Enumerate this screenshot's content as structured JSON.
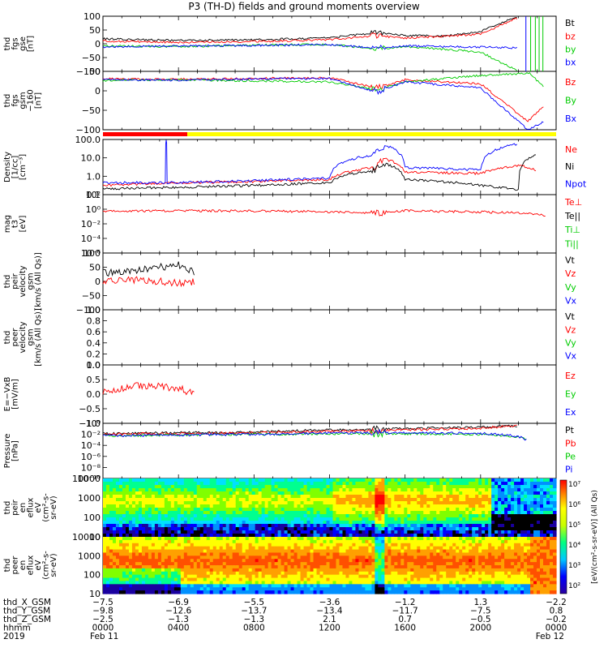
{
  "title": "P3 (TH-D) fields and ground moments overview",
  "panels": [
    {
      "id": "fgs_gse",
      "ylabel": [
        "thd",
        "fgs",
        "gse",
        "[nT]"
      ],
      "ylim": [
        -100,
        100
      ],
      "yticks": [
        "100",
        "50",
        "0",
        "−50",
        "−100"
      ],
      "legend": [
        {
          "label": "Bt",
          "color": "#000000"
        },
        {
          "label": "bz",
          "color": "#ff0000"
        },
        {
          "label": "by",
          "color": "#00cc00"
        },
        {
          "label": "bx",
          "color": "#0000ff"
        }
      ]
    },
    {
      "id": "fgs_gsm",
      "ylabel": [
        "thd",
        "fgs",
        "gsm",
        "−160",
        "[nT]"
      ],
      "ylim": [
        -120,
        20
      ],
      "yticks": [
        "50",
        "0",
        "−50",
        "−100"
      ],
      "legend": [
        {
          "label": "Bz",
          "color": "#ff0000"
        },
        {
          "label": "By",
          "color": "#00cc00"
        },
        {
          "label": "Bx",
          "color": "#0000ff"
        }
      ]
    },
    {
      "id": "density",
      "ylabel": [
        "Density",
        "[1/cc]",
        "[cm⁻³]"
      ],
      "scale": "log",
      "yticks": [
        "100.0",
        "10.0",
        "1.0",
        "0.1"
      ],
      "legend": [
        {
          "label": "Ne",
          "color": "#ff0000"
        },
        {
          "label": "Ni",
          "color": "#000000"
        },
        {
          "label": "Npot",
          "color": "#0000ff"
        }
      ]
    },
    {
      "id": "temp",
      "ylabel": [
        "mag",
        "t3",
        "[eV]"
      ],
      "scale": "log",
      "yticks": [
        "10²",
        "10⁰",
        "10⁻²",
        "10⁻⁴",
        "10⁻⁶"
      ],
      "legend": [
        {
          "label": "Te⊥",
          "color": "#ff0000"
        },
        {
          "label": "Te||",
          "color": "#000000"
        },
        {
          "label": "Ti⊥",
          "color": "#00cc00"
        },
        {
          "label": "Ti||",
          "color": "#00cc00"
        }
      ]
    },
    {
      "id": "peir_vel",
      "ylabel": [
        "thd",
        "peir",
        "velocity",
        "gsm",
        "[km/s (All Qs)]"
      ],
      "ylim": [
        -100,
        100
      ],
      "yticks": [
        "100",
        "50",
        "0",
        "−50",
        "−100"
      ],
      "legend": [
        {
          "label": "Vt",
          "color": "#000000"
        },
        {
          "label": "Vz",
          "color": "#ff0000"
        },
        {
          "label": "Vy",
          "color": "#00cc00"
        },
        {
          "label": "Vx",
          "color": "#0000ff"
        }
      ]
    },
    {
      "id": "peer_vel",
      "ylabel": [
        "thd",
        "peer",
        "velocity",
        "gsm",
        "[km/s (All Qs)]"
      ],
      "ylim": [
        0,
        1
      ],
      "yticks": [
        "1.0",
        "0.8",
        "0.6",
        "0.4",
        "0.2",
        "0.0"
      ],
      "legend": [
        {
          "label": "Vt",
          "color": "#000000"
        },
        {
          "label": "Vz",
          "color": "#ff0000"
        },
        {
          "label": "Vy",
          "color": "#00cc00"
        },
        {
          "label": "Vx",
          "color": "#0000ff"
        }
      ]
    },
    {
      "id": "efield",
      "ylabel": [
        "E=−VxB",
        "[mV/m]"
      ],
      "ylim": [
        -1,
        1
      ],
      "yticks": [
        "1.0",
        "0.5",
        "0.0",
        "−0.5",
        "−1.0"
      ],
      "legend": [
        {
          "label": "Ez",
          "color": "#ff0000"
        },
        {
          "label": "Ey",
          "color": "#00cc00"
        },
        {
          "label": "Ex",
          "color": "#0000ff"
        }
      ]
    },
    {
      "id": "pressure",
      "ylabel": [
        "Pressure",
        "[nPa]"
      ],
      "scale": "log",
      "yticks": [
        "10⁰",
        "10⁻²",
        "10⁻⁴",
        "10⁻⁶",
        "10⁻⁸",
        "10⁻¹⁰"
      ],
      "legend": [
        {
          "label": "Pt",
          "color": "#000000"
        },
        {
          "label": "Pb",
          "color": "#ff0000"
        },
        {
          "label": "Pe",
          "color": "#00cc00"
        },
        {
          "label": "Pi",
          "color": "#0000ff"
        }
      ]
    },
    {
      "id": "peir_spec",
      "ylabel": [
        "thd",
        "peir",
        "en",
        "eflux",
        "eV",
        "(cm²-s-",
        "sr-eV)"
      ],
      "scale": "log",
      "yticks": [
        "10000",
        "1000",
        "100",
        "10"
      ]
    },
    {
      "id": "peer_spec",
      "ylabel": [
        "thd",
        "peer",
        "en",
        "eflux",
        "eV",
        "(cm²-s-",
        "sr-eV)"
      ],
      "scale": "log",
      "yticks": [
        "10000",
        "1000",
        "100",
        "10"
      ]
    }
  ],
  "colorbar": {
    "label": "[eV/(cm²-s-sr-eV)] (All Qs)",
    "ticks": [
      "10⁷",
      "10⁶",
      "10⁵",
      "10⁴",
      "10³",
      "10²"
    ]
  },
  "ephemeris": {
    "row_labels": [
      "thd_X_GSM",
      "thd_Y_GSM",
      "thd_Z_GSM",
      "hhmm",
      "2019"
    ],
    "columns": [
      [
        "−7.5",
        "−9.8",
        "−2.5",
        "0000",
        "Feb 11"
      ],
      [
        "−6.9",
        "−12.6",
        "−1.3",
        "0400",
        ""
      ],
      [
        "−5.5",
        "−13.7",
        "−1.3",
        "0800",
        ""
      ],
      [
        "−3.6",
        "−13.4",
        "2.1",
        "1200",
        ""
      ],
      [
        "−1.2",
        "−11.7",
        "0.7",
        "1600",
        ""
      ],
      [
        "1.3",
        "−7.5",
        "−0.5",
        "2000",
        ""
      ],
      [
        "−2.2",
        "0.8",
        "−0.2",
        "0000",
        "Feb 12"
      ]
    ]
  },
  "chart_data": {
    "type": "line",
    "title": "P3 (TH-D) fields and ground moments overview",
    "x": {
      "label": "hhmm",
      "ticks": [
        "0000",
        "0400",
        "0800",
        "1200",
        "1600",
        "2000",
        "0000"
      ],
      "range_hours": [
        0,
        24
      ],
      "start_date": "Feb 11 2019",
      "end_date": "Feb 12 2019"
    },
    "series": [
      {
        "panel": "fgs_gse",
        "name": "Bt",
        "points": [
          [
            0,
            18
          ],
          [
            4,
            12
          ],
          [
            8,
            14
          ],
          [
            12,
            22
          ],
          [
            14.5,
            40
          ],
          [
            16,
            30
          ],
          [
            18,
            28
          ],
          [
            20,
            45
          ],
          [
            22,
            100
          ]
        ]
      },
      {
        "panel": "fgs_gse",
        "name": "bz",
        "points": [
          [
            0,
            10
          ],
          [
            4,
            5
          ],
          [
            8,
            8
          ],
          [
            12,
            15
          ],
          [
            14.5,
            30
          ],
          [
            16,
            20
          ],
          [
            20,
            35
          ],
          [
            22,
            95
          ]
        ]
      },
      {
        "panel": "fgs_gse",
        "name": "by",
        "points": [
          [
            0,
            -8
          ],
          [
            4,
            -10
          ],
          [
            8,
            -5
          ],
          [
            12,
            -2
          ],
          [
            14.5,
            -20
          ],
          [
            16,
            -10
          ],
          [
            20,
            -30
          ],
          [
            22,
            -100
          ]
        ]
      },
      {
        "panel": "fgs_gse",
        "name": "bx",
        "points": [
          [
            0,
            -12
          ],
          [
            4,
            -8
          ],
          [
            8,
            -6
          ],
          [
            12,
            -3
          ],
          [
            14.5,
            -15
          ],
          [
            16,
            -8
          ],
          [
            20,
            -12
          ],
          [
            22,
            -15
          ]
        ]
      },
      {
        "panel": "fgs_gsm",
        "name": "Bz",
        "points": [
          [
            0,
            2
          ],
          [
            4,
            1
          ],
          [
            8,
            3
          ],
          [
            12,
            5
          ],
          [
            14.5,
            -20
          ],
          [
            16,
            0
          ],
          [
            20,
            -10
          ],
          [
            22.5,
            -100
          ],
          [
            23.4,
            -60
          ]
        ]
      },
      {
        "panel": "fgs_gsm",
        "name": "By",
        "points": [
          [
            0,
            -2
          ],
          [
            4,
            0
          ],
          [
            8,
            -3
          ],
          [
            12,
            -5
          ],
          [
            14.5,
            -25
          ],
          [
            16,
            -5
          ],
          [
            20,
            10
          ],
          [
            22.6,
            15
          ],
          [
            23.4,
            -20
          ]
        ]
      },
      {
        "panel": "fgs_gsm",
        "name": "Bx",
        "points": [
          [
            0,
            0
          ],
          [
            4,
            -1
          ],
          [
            8,
            2
          ],
          [
            12,
            3
          ],
          [
            14.5,
            -30
          ],
          [
            16,
            -5
          ],
          [
            20,
            -20
          ],
          [
            22.5,
            -120
          ],
          [
            23.4,
            -100
          ]
        ]
      },
      {
        "panel": "density",
        "name": "Ne",
        "points": [
          [
            0,
            0.2
          ],
          [
            4,
            0.3
          ],
          [
            8,
            0.35
          ],
          [
            12,
            0.5
          ],
          [
            14.4,
            3
          ],
          [
            15,
            10
          ],
          [
            16,
            1.5
          ],
          [
            20,
            1.2
          ],
          [
            22,
            4
          ],
          [
            23,
            2
          ]
        ]
      },
      {
        "panel": "density",
        "name": "Ni",
        "points": [
          [
            0,
            0.12
          ],
          [
            4,
            0.15
          ],
          [
            8,
            0.2
          ],
          [
            12,
            0.3
          ],
          [
            14.4,
            2
          ],
          [
            15,
            5
          ],
          [
            16,
            0.5
          ],
          [
            20,
            0.2
          ],
          [
            22,
            0.1
          ],
          [
            23,
            20
          ]
        ]
      },
      {
        "panel": "density",
        "name": "Npot",
        "points": [
          [
            0,
            0.3
          ],
          [
            3.3,
            0.3
          ],
          [
            3.35,
            200
          ],
          [
            3.4,
            0.3
          ],
          [
            8,
            0.4
          ],
          [
            12,
            0.6
          ],
          [
            14.4,
            20
          ],
          [
            15,
            80
          ],
          [
            16,
            3
          ],
          [
            20,
            2
          ],
          [
            22,
            100
          ]
        ]
      },
      {
        "panel": "temp",
        "name": "Te⊥",
        "points": [
          [
            0,
            1
          ],
          [
            8,
            1
          ],
          [
            14.5,
            0.5
          ],
          [
            16,
            1
          ],
          [
            22,
            0.5
          ],
          [
            23.5,
            0.2
          ]
        ]
      },
      {
        "panel": "peir_vel",
        "name": "Vt",
        "points": [
          [
            0,
            30
          ],
          [
            2,
            40
          ],
          [
            4,
            60
          ],
          [
            4.9,
            30
          ]
        ]
      },
      {
        "panel": "peir_vel",
        "name": "Vz",
        "points": [
          [
            0,
            0
          ],
          [
            2,
            5
          ],
          [
            4,
            -5
          ],
          [
            4.9,
            0
          ]
        ]
      },
      {
        "panel": "efield",
        "name": "Ez",
        "points": [
          [
            0,
            0.1
          ],
          [
            2,
            0.3
          ],
          [
            4,
            0.2
          ],
          [
            4.9,
            0
          ]
        ]
      },
      {
        "panel": "pressure",
        "name": "Pt",
        "points": [
          [
            0,
            0.03
          ],
          [
            8,
            0.05
          ],
          [
            14.5,
            0.2
          ],
          [
            20,
            0.5
          ],
          [
            22,
            1
          ]
        ]
      },
      {
        "panel": "pressure",
        "name": "Pb",
        "points": [
          [
            0,
            0.02
          ],
          [
            8,
            0.04
          ],
          [
            14.5,
            0.1
          ],
          [
            20,
            0.3
          ],
          [
            22,
            1
          ]
        ]
      },
      {
        "panel": "pressure",
        "name": "Pe",
        "points": [
          [
            0,
            0.01
          ],
          [
            8,
            0.02
          ],
          [
            14.5,
            0.03
          ],
          [
            20,
            0.02
          ],
          [
            22.5,
            0.001
          ]
        ]
      },
      {
        "panel": "pressure",
        "name": "Pi",
        "points": [
          [
            0,
            0.01
          ],
          [
            8,
            0.02
          ],
          [
            14.5,
            0.04
          ],
          [
            20,
            0.03
          ],
          [
            22.5,
            0.0005
          ]
        ]
      }
    ],
    "ylim_note": "per panel, see panels[].ylim"
  }
}
